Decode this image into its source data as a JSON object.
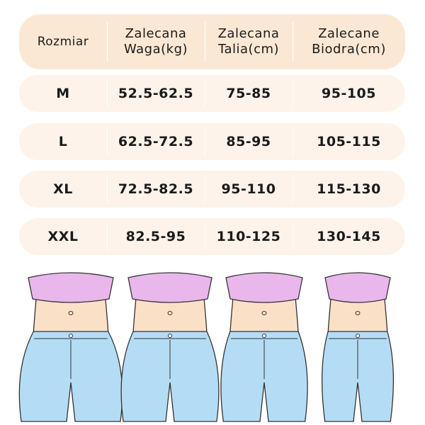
{
  "table": {
    "headers": [
      {
        "line1": "Rozmiar",
        "line2": ""
      },
      {
        "line1": "Zalecana",
        "line2": "Waga(kg)"
      },
      {
        "line1": "Zalecana",
        "line2": "Talia(cm)"
      },
      {
        "line1": "Zalecane",
        "line2": "Biodra(cm)"
      }
    ],
    "rows": [
      [
        "M",
        "52.5-62.5",
        "75-85",
        "95-105"
      ],
      [
        "L",
        "62.5-72.5",
        "85-95",
        "105-115"
      ],
      [
        "XL",
        "72.5-82.5",
        "95-110",
        "115-130"
      ],
      [
        "XXL",
        "82.5-95",
        "110-125",
        "130-145"
      ]
    ]
  },
  "colors": {
    "header_bg": "#fbe8d4",
    "row_bg": "#fdf3ea",
    "top": "#e9b7ec",
    "skin": "#fbe0c8",
    "jeans": "#b5dcf5"
  }
}
